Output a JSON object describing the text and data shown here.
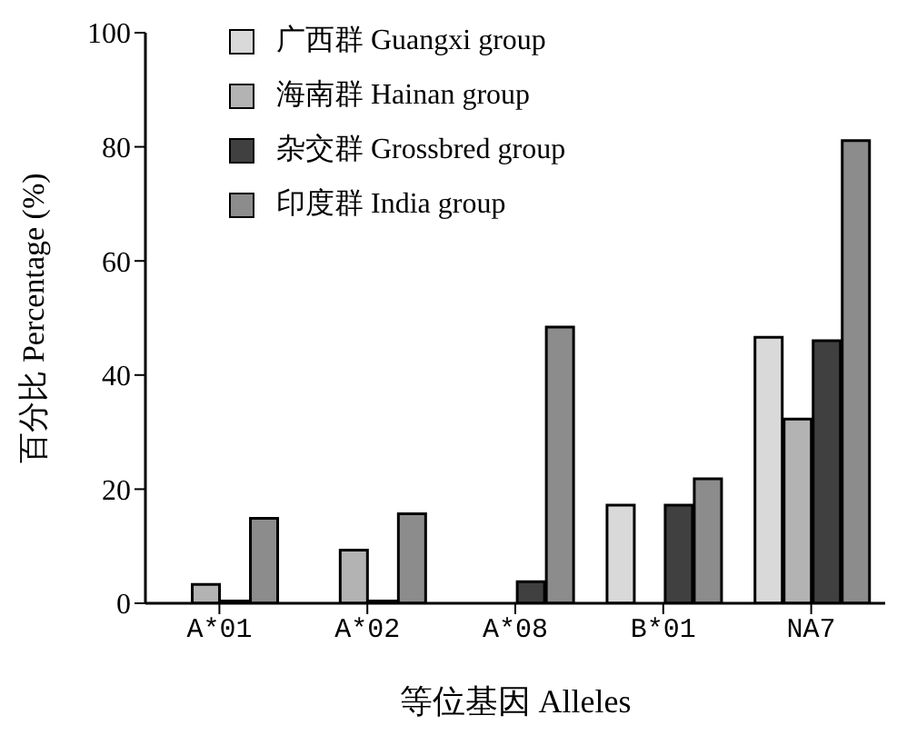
{
  "chart_data": {
    "type": "bar",
    "xlabel": "等位基因  Alleles",
    "ylabel": "百分比 Percentage (%)",
    "categories": [
      "A*01",
      "A*02",
      "A*08",
      "B*01",
      "NA7"
    ],
    "series": [
      {
        "name": "广西群 Guangxi group",
        "color": "#d9d9d9",
        "values": [
          0,
          0,
          0,
          17.2,
          46.6
        ]
      },
      {
        "name": "海南群 Hainan group",
        "color": "#b3b3b3",
        "values": [
          3.3,
          9.3,
          0,
          0,
          32.3
        ]
      },
      {
        "name": "杂交群 Grossbred group",
        "color": "#404040",
        "values": [
          0.4,
          0.4,
          3.8,
          17.2,
          46
        ]
      },
      {
        "name": "印度群 India group",
        "color": "#8c8c8c",
        "values": [
          14.9,
          15.7,
          48.4,
          21.8,
          81.1
        ]
      }
    ],
    "ylim": [
      0,
      100
    ],
    "yticks": [
      0,
      20,
      40,
      60,
      80,
      100
    ],
    "grid": false,
    "legend": "top left"
  }
}
